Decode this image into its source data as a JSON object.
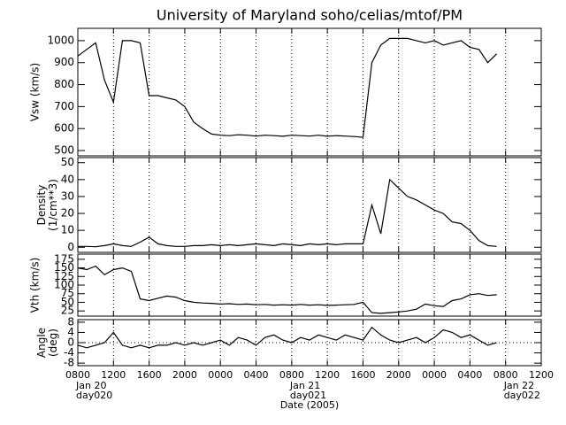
{
  "figure": {
    "title": "University of Maryland  soho/celias/mtof/PM",
    "x_label": "Date (2005)",
    "xticks": [
      {
        "value": 8,
        "label": "0800"
      },
      {
        "value": 12,
        "label": "1200"
      },
      {
        "value": 16,
        "label": "1600"
      },
      {
        "value": 20,
        "label": "2000"
      },
      {
        "value": 24,
        "label": "0000"
      },
      {
        "value": 28,
        "label": "0400"
      },
      {
        "value": 32,
        "label": "0800"
      },
      {
        "value": 36,
        "label": "1200"
      },
      {
        "value": 40,
        "label": "1600"
      },
      {
        "value": 44,
        "label": "2000"
      },
      {
        "value": 48,
        "label": "0000"
      },
      {
        "value": 52,
        "label": "0400"
      },
      {
        "value": 56,
        "label": "0800"
      },
      {
        "value": 60,
        "label": "1200"
      }
    ],
    "date_labels": [
      {
        "value": 8,
        "lines": [
          "Jan 20",
          "day020"
        ]
      },
      {
        "value": 32,
        "lines": [
          "Jan 21",
          "day021"
        ]
      },
      {
        "value": 56,
        "lines": [
          "Jan 22",
          "day022"
        ]
      }
    ]
  },
  "chart_data": [
    {
      "type": "line",
      "ylabel": [
        "Vsw (km/s)"
      ],
      "color": "#000000",
      "grid": true,
      "xlim": [
        8,
        60
      ],
      "ylim": [
        476,
        1056
      ],
      "yticks": [
        500,
        600,
        700,
        800,
        900,
        1000
      ],
      "x": [
        8,
        9,
        10,
        11,
        12,
        13,
        14,
        15,
        16,
        17,
        18,
        19,
        20,
        21,
        22,
        23,
        24,
        25,
        26,
        27,
        28,
        29,
        30,
        31,
        32,
        33,
        34,
        35,
        36,
        37,
        38,
        39,
        40,
        41,
        42,
        43,
        44,
        45,
        46,
        47,
        48,
        49,
        50,
        51,
        52,
        53,
        54,
        55
      ],
      "values": [
        930,
        960,
        990,
        820,
        720,
        1000,
        1000,
        990,
        750,
        750,
        740,
        730,
        700,
        630,
        600,
        575,
        570,
        568,
        572,
        570,
        566,
        570,
        568,
        565,
        570,
        568,
        566,
        570,
        565,
        568,
        566,
        564,
        560,
        900,
        980,
        1010,
        1010,
        1010,
        1000,
        990,
        1000,
        980,
        990,
        1000,
        970,
        960,
        900,
        940
      ]
    },
    {
      "type": "line",
      "ylabel": [
        "Density",
        "(1/cm**3)"
      ],
      "color": "#000000",
      "grid": true,
      "xlim": [
        8,
        60
      ],
      "ylim": [
        -3,
        53
      ],
      "yticks": [
        0,
        10,
        20,
        30,
        40,
        50
      ],
      "x": [
        8,
        9,
        10,
        11,
        12,
        13,
        14,
        15,
        16,
        17,
        18,
        19,
        20,
        21,
        22,
        23,
        24,
        25,
        26,
        27,
        28,
        29,
        30,
        31,
        32,
        33,
        34,
        35,
        36,
        37,
        38,
        39,
        40,
        41,
        42,
        43,
        44,
        45,
        46,
        47,
        48,
        49,
        50,
        51,
        52,
        53,
        54,
        55
      ],
      "values": [
        0.5,
        0.5,
        0.3,
        1,
        2,
        1,
        0.5,
        3,
        6,
        2,
        1,
        0.5,
        0.5,
        1,
        1,
        1.5,
        1,
        1.5,
        1,
        1.5,
        2,
        1.5,
        1,
        2,
        1.5,
        1,
        2,
        1.5,
        2,
        1.5,
        2,
        2,
        2,
        25,
        8,
        40,
        35,
        30,
        28,
        25,
        22,
        20,
        15,
        14,
        10,
        4,
        1,
        0.5
      ]
    },
    {
      "type": "line",
      "ylabel": [
        "Vth (km/s)"
      ],
      "color": "#000000",
      "grid": true,
      "xlim": [
        8,
        60
      ],
      "ylim": [
        10,
        190
      ],
      "yticks": [
        25,
        50,
        75,
        100,
        125,
        150,
        175
      ],
      "x": [
        8,
        9,
        10,
        11,
        12,
        13,
        14,
        15,
        16,
        17,
        18,
        19,
        20,
        21,
        22,
        23,
        24,
        25,
        26,
        27,
        28,
        29,
        30,
        31,
        32,
        33,
        34,
        35,
        36,
        37,
        38,
        39,
        40,
        41,
        42,
        43,
        44,
        45,
        46,
        47,
        48,
        49,
        50,
        51,
        52,
        53,
        54,
        55
      ],
      "values": [
        150,
        145,
        155,
        130,
        145,
        150,
        140,
        60,
        55,
        62,
        68,
        65,
        55,
        50,
        48,
        47,
        45,
        46,
        44,
        45,
        43,
        44,
        42,
        43,
        42,
        44,
        42,
        43,
        41,
        42,
        43,
        44,
        50,
        20,
        18,
        20,
        22,
        25,
        30,
        45,
        40,
        38,
        55,
        60,
        72,
        75,
        70,
        72
      ]
    },
    {
      "type": "line",
      "ylabel": [
        "Angle",
        "(deg)"
      ],
      "color": "#000000",
      "grid": true,
      "hline": 0,
      "xlim": [
        8,
        60
      ],
      "ylim": [
        -9,
        9
      ],
      "yticks": [
        -8,
        -4,
        0,
        4,
        8
      ],
      "x": [
        8,
        9,
        10,
        11,
        12,
        13,
        14,
        15,
        16,
        17,
        18,
        19,
        20,
        21,
        22,
        23,
        24,
        25,
        26,
        27,
        28,
        29,
        30,
        31,
        32,
        33,
        34,
        35,
        36,
        37,
        38,
        39,
        40,
        41,
        42,
        43,
        44,
        45,
        46,
        47,
        48,
        49,
        50,
        51,
        52,
        53,
        54,
        55
      ],
      "values": [
        -1,
        -2,
        -1,
        0,
        4,
        -1,
        -2,
        -1,
        -2,
        -1,
        -1,
        0,
        -1,
        0,
        -1,
        0,
        1,
        -1,
        2,
        1,
        -1,
        2,
        3,
        1,
        0,
        2,
        1,
        3,
        2,
        1,
        3,
        2,
        1,
        6,
        3,
        1,
        0,
        1,
        2,
        0,
        2,
        5,
        4,
        2,
        3,
        1,
        -1,
        0
      ]
    }
  ]
}
